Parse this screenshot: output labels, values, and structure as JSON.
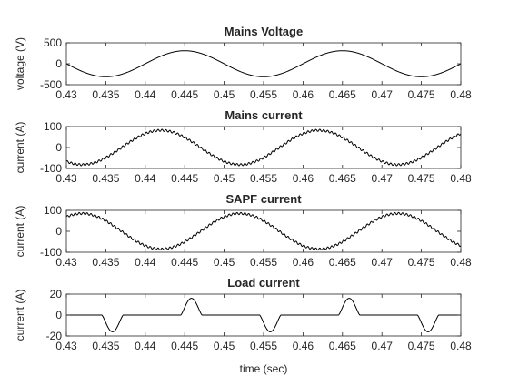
{
  "figure": {
    "xlabel": "time (sec)"
  },
  "chart_data": [
    {
      "type": "line",
      "title": "Mains Voltage",
      "xlabel": "",
      "ylabel": "voltage (V)",
      "xlim": [
        0.43,
        0.48
      ],
      "ylim": [
        -500,
        500
      ],
      "xticks": [
        0.43,
        0.435,
        0.44,
        0.445,
        0.45,
        0.455,
        0.46,
        0.465,
        0.47,
        0.475,
        0.48
      ],
      "yticks": [
        -500,
        0,
        500
      ],
      "grid": false,
      "line_color": "#000000",
      "waveform": {
        "kind": "sine",
        "amplitude": 311,
        "frequency_hz": 50,
        "peak_times": [
          0.445,
          0.465
        ],
        "trough_times": [
          0.435,
          0.455,
          0.475
        ],
        "ripple": 0
      }
    },
    {
      "type": "line",
      "title": "Mains current",
      "xlabel": "",
      "ylabel": "current (A)",
      "xlim": [
        0.43,
        0.48
      ],
      "ylim": [
        -100,
        100
      ],
      "xticks": [
        0.43,
        0.435,
        0.44,
        0.445,
        0.45,
        0.455,
        0.46,
        0.465,
        0.47,
        0.475,
        0.48
      ],
      "yticks": [
        -100,
        0,
        100
      ],
      "grid": false,
      "line_color": "#000000",
      "waveform": {
        "kind": "sine",
        "amplitude": 82,
        "frequency_hz": 50,
        "peak_times": [
          0.442,
          0.462
        ],
        "trough_times": [
          0.432,
          0.452,
          0.472
        ],
        "ripple": 5
      }
    },
    {
      "type": "line",
      "title": "SAPF current",
      "xlabel": "",
      "ylabel": "current (A)",
      "xlim": [
        0.43,
        0.48
      ],
      "ylim": [
        -100,
        100
      ],
      "xticks": [
        0.43,
        0.435,
        0.44,
        0.445,
        0.45,
        0.455,
        0.46,
        0.465,
        0.47,
        0.475,
        0.48
      ],
      "yticks": [
        -100,
        0,
        100
      ],
      "grid": false,
      "line_color": "#000000",
      "waveform": {
        "kind": "sine",
        "amplitude": 85,
        "frequency_hz": 50,
        "peak_times": [
          0.432,
          0.452,
          0.472
        ],
        "trough_times": [
          0.442,
          0.462
        ],
        "ripple": 5
      }
    },
    {
      "type": "line",
      "title": "Load current",
      "xlabel": "time (sec)",
      "ylabel": "current (A)",
      "xlim": [
        0.43,
        0.48
      ],
      "ylim": [
        -20,
        20
      ],
      "xticks": [
        0.43,
        0.435,
        0.44,
        0.445,
        0.45,
        0.455,
        0.46,
        0.465,
        0.47,
        0.475,
        0.48
      ],
      "yticks": [
        -20,
        0,
        20
      ],
      "grid": false,
      "line_color": "#000000",
      "waveform": {
        "kind": "pulses",
        "amplitude": 16,
        "pulses": [
          {
            "start": 0.4345,
            "end": 0.4372,
            "sign": -1
          },
          {
            "start": 0.4445,
            "end": 0.4472,
            "sign": 1
          },
          {
            "start": 0.4545,
            "end": 0.4572,
            "sign": -1
          },
          {
            "start": 0.4645,
            "end": 0.4672,
            "sign": 1
          },
          {
            "start": 0.4745,
            "end": 0.4772,
            "sign": -1
          }
        ]
      }
    }
  ]
}
